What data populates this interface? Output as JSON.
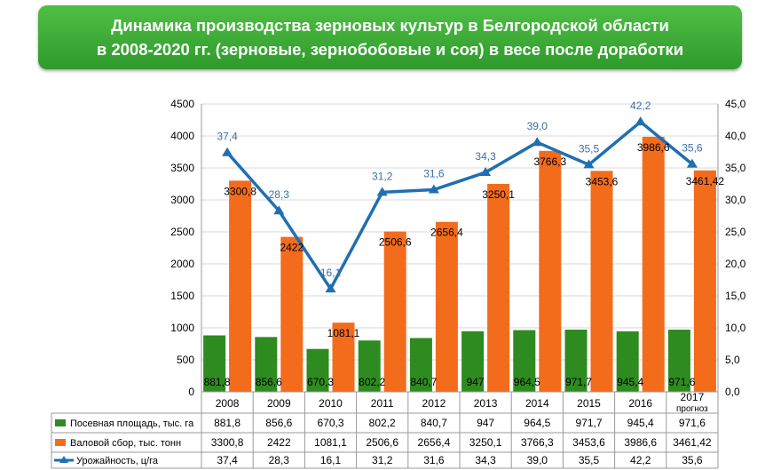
{
  "header": {
    "title_line1": "Динамика производства зерновых культур в Белгородской области",
    "title_line2": "в 2008-2020 гг.  (зерновые, зернобобовые и соя) в весе после доработки"
  },
  "chart_data": {
    "type": "bar",
    "categories": [
      "2008",
      "2009",
      "2010",
      "2011",
      "2012",
      "2013",
      "2014",
      "2015",
      "2016",
      "2017\nпрогноз"
    ],
    "series": [
      {
        "name": "Посевная площадь, тыс. га",
        "kind": "bar",
        "axis": "left",
        "color": "#2e8b1f",
        "values": [
          881.8,
          856.6,
          670.3,
          802.2,
          840.7,
          947,
          964.5,
          971.7,
          945.4,
          971.6
        ],
        "labels": [
          "881,8",
          "856,6",
          "670,3",
          "802,2",
          "840,7",
          "947",
          "964,5",
          "971,7",
          "945,4",
          "971,6"
        ]
      },
      {
        "name": "Валовой сбор, тыс. тонн",
        "kind": "bar",
        "axis": "left",
        "color": "#f36c1c",
        "values": [
          3300.8,
          2422,
          1081.1,
          2506.6,
          2656.4,
          3250.1,
          3766.3,
          3453.6,
          3986.6,
          3461.42
        ],
        "labels": [
          "3300,8",
          "2422",
          "1081,1",
          "2506,6",
          "2656,4",
          "3250,1",
          "3766,3",
          "3453,6",
          "3986,6",
          "3461,42"
        ]
      },
      {
        "name": "Урожайность, ц/га",
        "kind": "line",
        "axis": "right",
        "color": "#1f6fb2",
        "values": [
          37.4,
          28.3,
          16.1,
          31.2,
          31.6,
          34.3,
          39.0,
          35.5,
          42.2,
          35.6
        ],
        "labels": [
          "37,4",
          "28,3",
          "16,1",
          "31,2",
          "31,6",
          "34,3",
          "39,0",
          "35,5",
          "42,2",
          "35,6"
        ]
      }
    ],
    "ylim": [
      0,
      4500
    ],
    "yticks": [
      "0",
      "500",
      "1000",
      "1500",
      "2000",
      "2500",
      "3000",
      "3500",
      "4000",
      "4500"
    ],
    "y2lim": [
      0,
      45
    ],
    "y2ticks": [
      "0,0",
      "5,0",
      "10,0",
      "15,0",
      "20,0",
      "25,0",
      "30,0",
      "35,0",
      "40,0",
      "45,0"
    ],
    "grid": true,
    "legend": "data table below plot"
  }
}
